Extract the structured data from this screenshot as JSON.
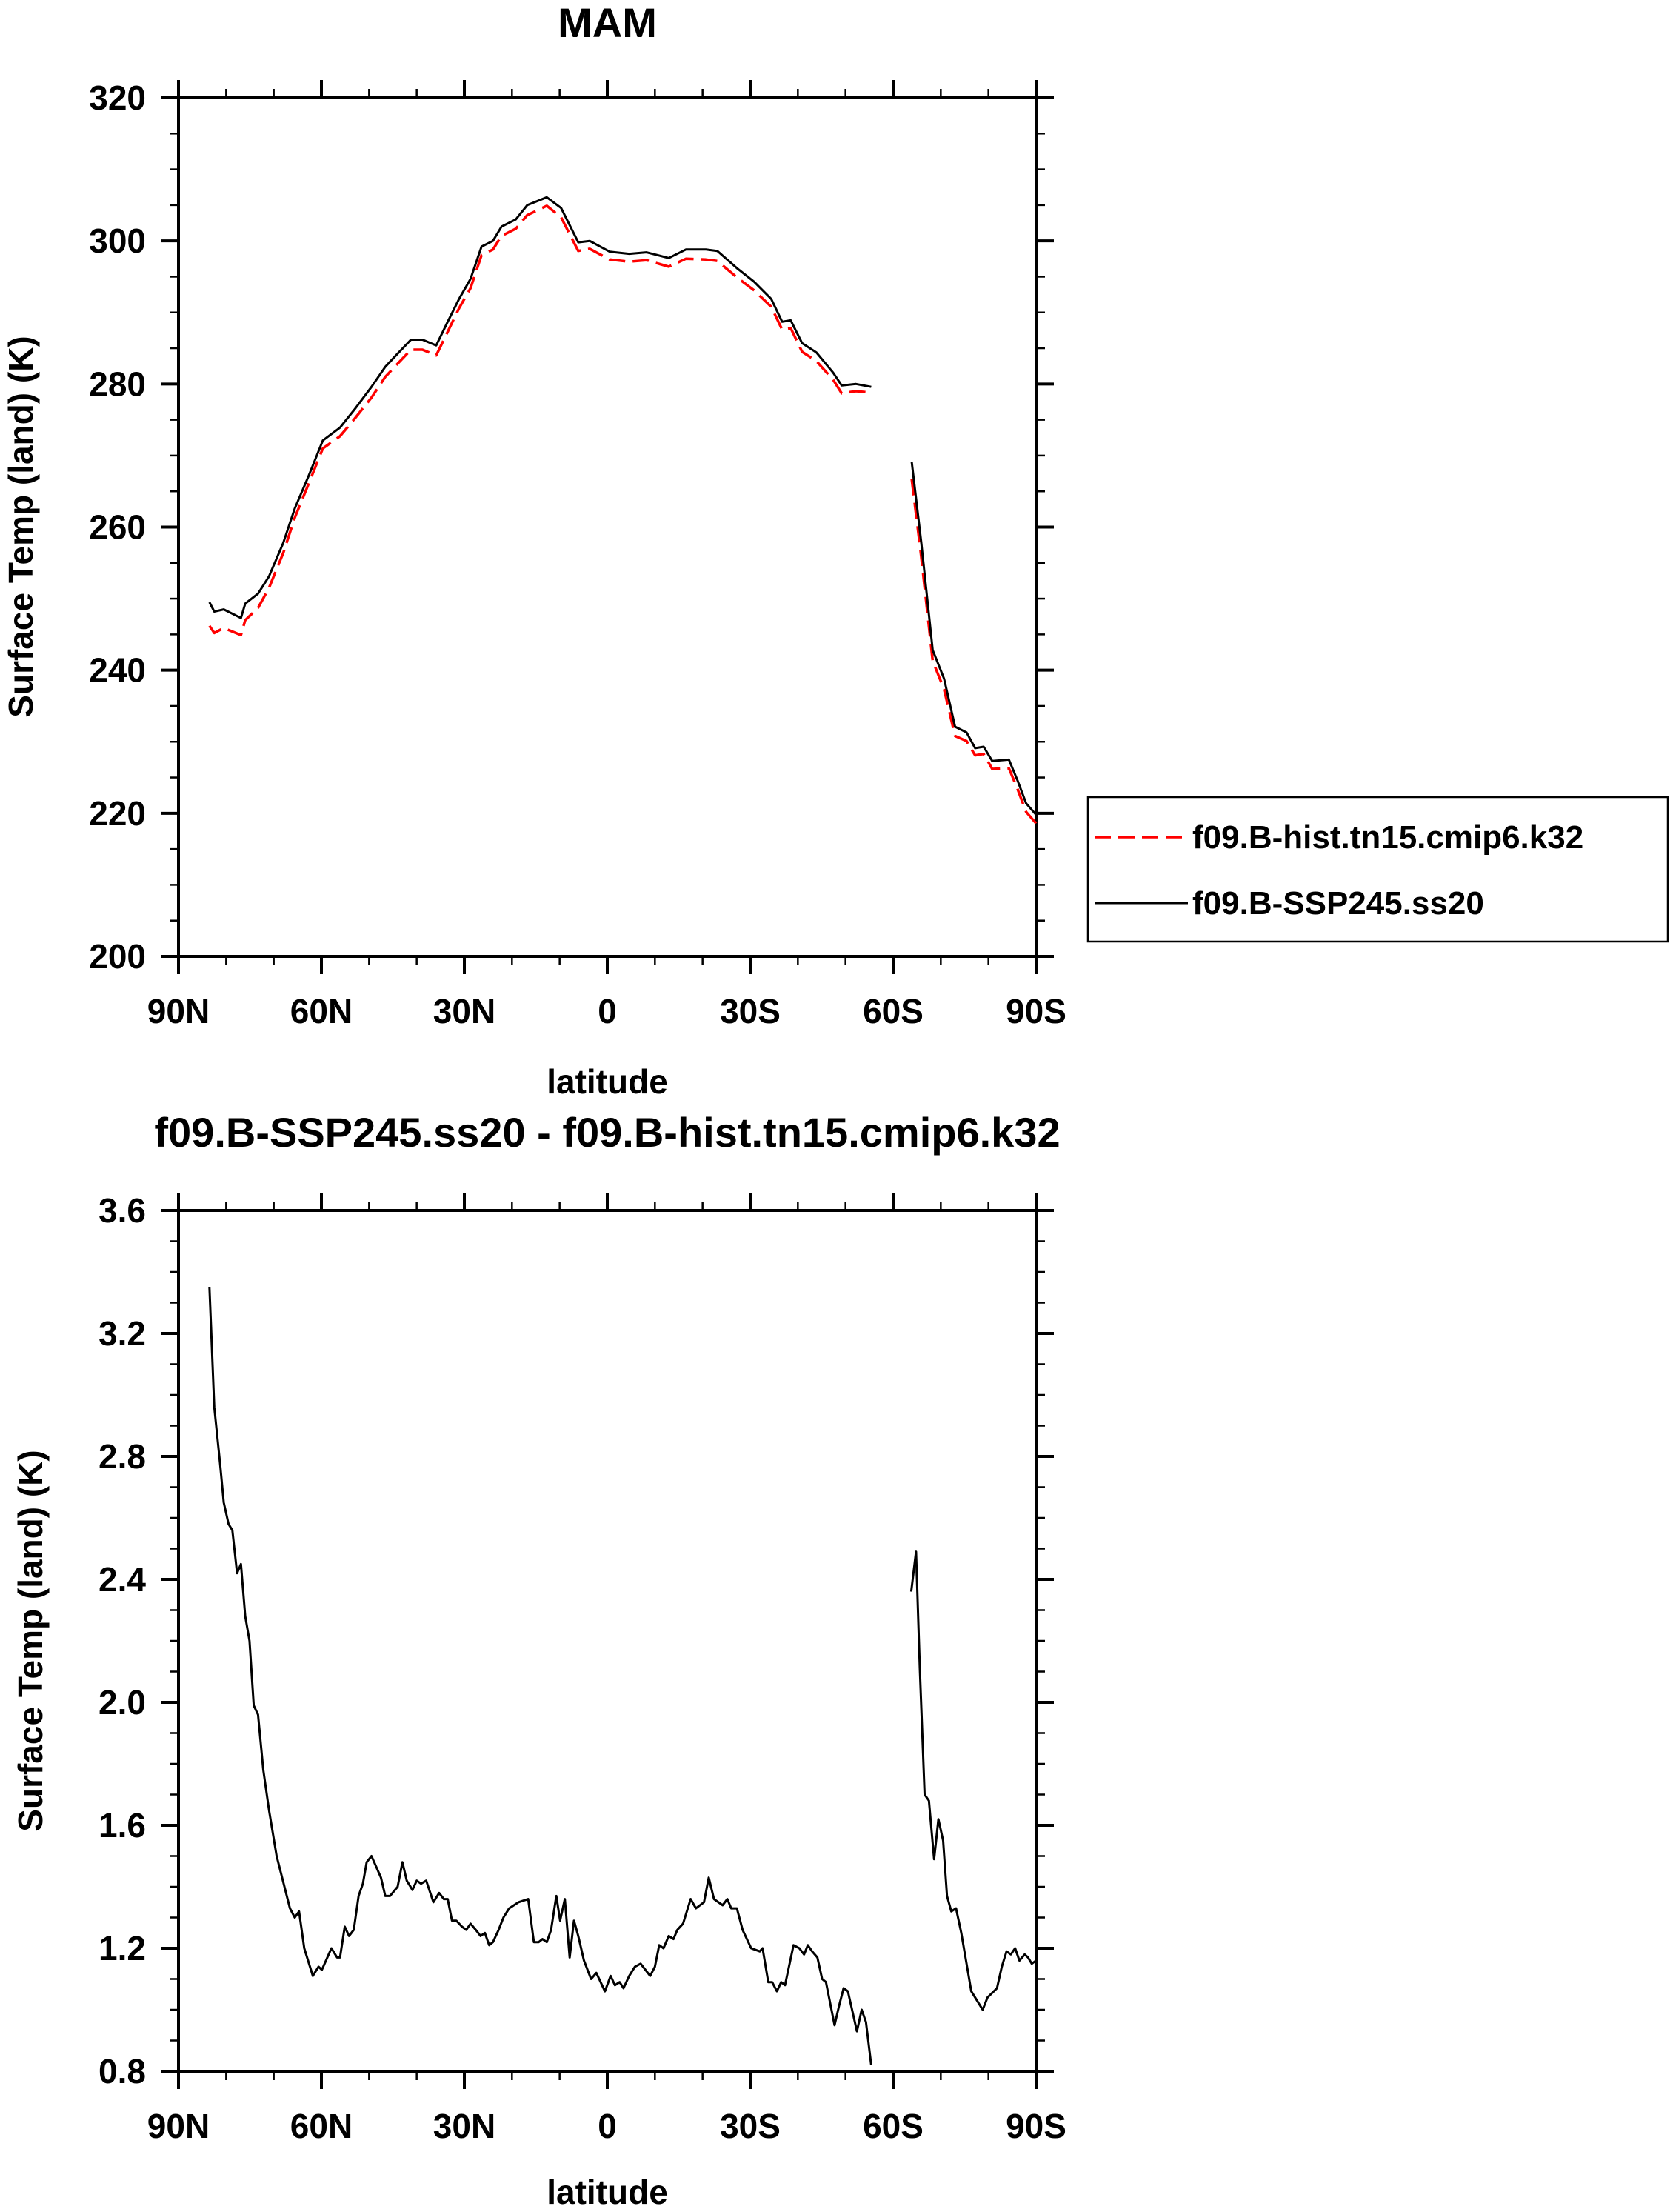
{
  "chart_data": [
    {
      "type": "line",
      "title": "MAM",
      "xlabel": "latitude",
      "ylabel": "Surface Temp (land) (K)",
      "xlim": [
        90,
        -90
      ],
      "ylim": [
        200,
        320
      ],
      "x_unit_note": "latitude in degrees, positive north",
      "xticks": [
        90,
        60,
        30,
        0,
        -30,
        -60,
        -90
      ],
      "xtick_labels": [
        "90N",
        "60N",
        "30N",
        "0",
        "30S",
        "60S",
        "90S"
      ],
      "yticks": [
        200,
        220,
        240,
        260,
        280,
        300,
        320
      ],
      "ytick_labels": [
        "200",
        "220",
        "240",
        "260",
        "280",
        "300",
        "320"
      ],
      "grid": false,
      "legend_position": "right",
      "x": [
        83.5,
        82.5,
        80.5,
        76.9,
        76,
        73.3,
        71,
        68,
        65.6,
        62.6,
        59.7,
        56.1,
        53.1,
        49.5,
        46.6,
        44.2,
        41.2,
        38.8,
        35.9,
        33.5,
        31.1,
        28.7,
        26.4,
        24,
        22.2,
        19.2,
        16.8,
        12.7,
        9.7,
        6.1,
        3.7,
        -0.5,
        -4.6,
        -8.2,
        -12.9,
        -16.5,
        -20.7,
        -23.1,
        -27.2,
        -30.8,
        -34.4,
        -36.7,
        -38.5,
        -40.9,
        -43.9,
        -47.4,
        -49.2,
        -52.2,
        -55.4,
        null,
        -63.9,
        -65.9,
        -68.3,
        -70.7,
        -73,
        -75.4,
        -77.2,
        -79,
        -80.8,
        -84.3,
        -86.1,
        -87.9,
        -90
      ],
      "series": [
        {
          "name": "f09.B-hist.tn15.cmip6.k32",
          "color": "#ff0000",
          "dash": "dashed",
          "values": [
            246.2,
            245.2,
            245.9,
            244.9,
            247.0,
            248.7,
            251.5,
            256.4,
            261.3,
            266.2,
            271.0,
            272.7,
            275.1,
            278.1,
            281.0,
            282.7,
            284.8,
            284.8,
            284.0,
            287.3,
            290.6,
            293.4,
            298.0,
            298.8,
            300.7,
            301.7,
            303.6,
            304.9,
            303.3,
            298.6,
            298.9,
            297.4,
            297.1,
            297.3,
            296.4,
            297.5,
            297.4,
            297.2,
            294.9,
            293.1,
            290.8,
            287.6,
            287.8,
            284.5,
            283.2,
            280.6,
            278.7,
            279.0,
            278.8,
            null,
            266.7,
            255.8,
            241.3,
            237.3,
            230.8,
            230.1,
            228.1,
            228.3,
            226.2,
            226.3,
            223.4,
            220.2,
            218.6
          ]
        },
        {
          "name": "f09.B-SSP245.ss20",
          "color": "#000000",
          "dash": "solid",
          "values": [
            249.5,
            248.2,
            248.5,
            247.3,
            249.3,
            250.7,
            253.1,
            257.8,
            262.6,
            267.3,
            272.1,
            273.9,
            276.4,
            279.6,
            282.4,
            284.1,
            286.2,
            286.2,
            285.4,
            288.7,
            291.9,
            294.7,
            299.2,
            300.0,
            302.0,
            303.0,
            305.0,
            306.1,
            304.6,
            299.8,
            300.0,
            298.5,
            298.2,
            298.4,
            297.6,
            298.8,
            298.8,
            298.6,
            296.2,
            294.3,
            291.9,
            288.7,
            288.9,
            285.7,
            284.4,
            281.6,
            279.8,
            280.0,
            279.6,
            null,
            269.1,
            257.8,
            242.8,
            238.8,
            232.1,
            231.3,
            229.1,
            229.3,
            227.3,
            227.5,
            224.6,
            221.4,
            219.8
          ]
        }
      ]
    },
    {
      "type": "line",
      "title": "f09.B-SSP245.ss20 - f09.B-hist.tn15.cmip6.k32",
      "xlabel": "latitude",
      "ylabel": "Surface Temp (land) (K)",
      "xlim": [
        90,
        -90
      ],
      "ylim": [
        0.8,
        3.6
      ],
      "xticks": [
        90,
        60,
        30,
        0,
        -30,
        -60,
        -90
      ],
      "xtick_labels": [
        "90N",
        "60N",
        "30N",
        "0",
        "30S",
        "60S",
        "90S"
      ],
      "yticks": [
        0.8,
        1.2,
        1.6,
        2.0,
        2.4,
        2.8,
        3.2,
        3.6
      ],
      "ytick_labels": [
        "0.8",
        "1.2",
        "1.6",
        "2.0",
        "2.4",
        "2.8",
        "3.2",
        "3.6"
      ],
      "grid": false,
      "x": [
        83.5,
        82.5,
        81.3,
        80.5,
        79.5,
        78.7,
        77.7,
        76.9,
        76,
        75.1,
        74.2,
        73.3,
        72.2,
        71,
        69.4,
        66.6,
        65.6,
        64.7,
        63.6,
        61.8,
        60.6,
        59.9,
        57.9,
        56.7,
        56.1,
        55.1,
        54.2,
        53.2,
        52.2,
        51.3,
        50.5,
        49.5,
        47.5,
        46.6,
        45.6,
        44,
        43,
        42.1,
        40.9,
        40,
        39.1,
        38,
        36.5,
        35.3,
        34.3,
        33.5,
        32.6,
        31.7,
        30.5,
        29.6,
        28.7,
        27.6,
        26.6,
        25.7,
        24.8,
        24,
        22.8,
        21.8,
        20.6,
        18.6,
        16.6,
        15.4,
        14.4,
        13.6,
        12.7,
        11.8,
        10.7,
        9.9,
        8.9,
        7.9,
        7,
        6.1,
        4.9,
        3.4,
        2.3,
        0.5,
        -0.7,
        -1.6,
        -2.6,
        -3.4,
        -4.6,
        -5.8,
        -7,
        -9,
        -10,
        -10.9,
        -11.8,
        -12.9,
        -13.9,
        -14.7,
        -15.9,
        -17.5,
        -18.6,
        -20.3,
        -21.3,
        -22.4,
        -24.2,
        -25.2,
        -26,
        -27.2,
        -28.4,
        -30.2,
        -32,
        -32.6,
        -33.8,
        -34.6,
        -35.6,
        -36.5,
        -37.3,
        -39.1,
        -40.3,
        -41.3,
        -42.1,
        -43,
        -44.1,
        -45.1,
        -45.9,
        -47.7,
        -48.6,
        -49.6,
        -50.5,
        -52.4,
        -53.4,
        -54.3,
        -55.4,
        null,
        -63.8,
        -64.8,
        -65.6,
        -66.6,
        -67.5,
        -68.6,
        -69.5,
        -70.5,
        -71.3,
        -72.2,
        -73.2,
        -74.3,
        -75.4,
        -76.4,
        -77.2,
        -78.8,
        -79.8,
        -81.8,
        -82.8,
        -83.8,
        -84.7,
        -85.6,
        -86.5,
        -87.6,
        -88.3,
        -89.1,
        -90
      ],
      "series": [
        {
          "name": "f09.B-SSP245.ss20 - f09.B-hist.tn15.cmip6.k32",
          "color": "#000000",
          "dash": "solid",
          "values": [
            3.35,
            2.96,
            2.78,
            2.65,
            2.58,
            2.56,
            2.42,
            2.45,
            2.28,
            2.2,
            1.99,
            1.96,
            1.78,
            1.65,
            1.5,
            1.33,
            1.3,
            1.32,
            1.2,
            1.11,
            1.14,
            1.13,
            1.2,
            1.17,
            1.17,
            1.27,
            1.24,
            1.26,
            1.37,
            1.41,
            1.48,
            1.5,
            1.43,
            1.37,
            1.37,
            1.4,
            1.48,
            1.42,
            1.39,
            1.42,
            1.41,
            1.42,
            1.35,
            1.38,
            1.36,
            1.36,
            1.29,
            1.29,
            1.27,
            1.26,
            1.28,
            1.26,
            1.24,
            1.25,
            1.21,
            1.22,
            1.26,
            1.3,
            1.33,
            1.35,
            1.36,
            1.22,
            1.22,
            1.23,
            1.22,
            1.26,
            1.37,
            1.29,
            1.36,
            1.17,
            1.29,
            1.24,
            1.16,
            1.1,
            1.12,
            1.06,
            1.11,
            1.08,
            1.09,
            1.07,
            1.11,
            1.14,
            1.15,
            1.11,
            1.14,
            1.21,
            1.2,
            1.24,
            1.23,
            1.26,
            1.28,
            1.36,
            1.33,
            1.35,
            1.43,
            1.36,
            1.34,
            1.36,
            1.33,
            1.33,
            1.26,
            1.2,
            1.19,
            1.2,
            1.09,
            1.09,
            1.06,
            1.09,
            1.08,
            1.21,
            1.2,
            1.18,
            1.21,
            1.19,
            1.17,
            1.1,
            1.09,
            0.95,
            1.01,
            1.07,
            1.06,
            0.93,
            1.0,
            0.96,
            0.82,
            null,
            2.36,
            2.49,
            2.11,
            1.7,
            1.68,
            1.49,
            1.62,
            1.55,
            1.37,
            1.32,
            1.33,
            1.25,
            1.15,
            1.06,
            1.04,
            1.0,
            1.04,
            1.07,
            1.14,
            1.19,
            1.18,
            1.2,
            1.16,
            1.18,
            1.17,
            1.15,
            1.16
          ]
        }
      ]
    }
  ]
}
